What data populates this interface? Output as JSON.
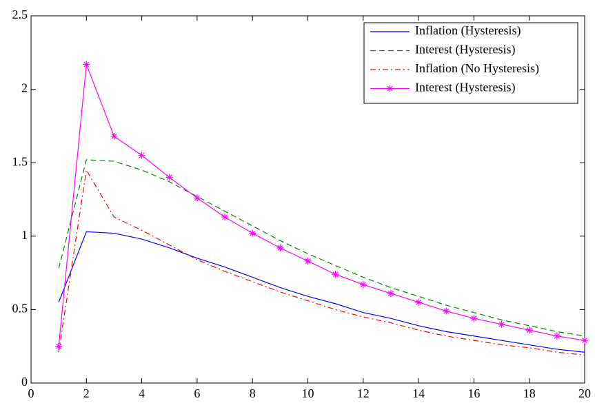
{
  "chart_data": {
    "type": "line",
    "x": [
      1,
      2,
      3,
      4,
      5,
      6,
      7,
      8,
      9,
      10,
      11,
      12,
      13,
      14,
      15,
      16,
      17,
      18,
      19,
      20
    ],
    "series": [
      {
        "name": "Inflation (Hysteresis)",
        "color": "#0000ff",
        "style": "solid",
        "values": [
          0.55,
          1.03,
          1.02,
          0.98,
          0.92,
          0.85,
          0.79,
          0.72,
          0.65,
          0.59,
          0.54,
          0.48,
          0.44,
          0.39,
          0.35,
          0.32,
          0.29,
          0.26,
          0.23,
          0.21
        ]
      },
      {
        "name": "Interest (Hysteresis)",
        "color": "#008000",
        "style": "dashed",
        "values": [
          0.78,
          1.52,
          1.51,
          1.45,
          1.37,
          1.27,
          1.17,
          1.07,
          0.97,
          0.88,
          0.8,
          0.72,
          0.65,
          0.59,
          0.53,
          0.48,
          0.43,
          0.39,
          0.35,
          0.32
        ]
      },
      {
        "name": "Inflation (No Hysteresis)",
        "color": "#ff0000",
        "style": "dashdot",
        "values": [
          0.21,
          1.45,
          1.13,
          1.04,
          0.94,
          0.84,
          0.76,
          0.69,
          0.62,
          0.56,
          0.5,
          0.45,
          0.41,
          0.36,
          0.32,
          0.29,
          0.26,
          0.24,
          0.21,
          0.19
        ]
      },
      {
        "name": "Interest (Hysteresis)",
        "color": "#ff00ff",
        "style": "solid",
        "marker": "star",
        "values": [
          0.25,
          2.17,
          1.68,
          1.55,
          1.4,
          1.26,
          1.13,
          1.02,
          0.92,
          0.83,
          0.74,
          0.67,
          0.61,
          0.55,
          0.49,
          0.44,
          0.4,
          0.36,
          0.32,
          0.29
        ]
      }
    ],
    "xlim": [
      0,
      20
    ],
    "xticks": [
      0,
      2,
      4,
      6,
      8,
      10,
      12,
      14,
      16,
      18,
      20
    ],
    "ylim": [
      0,
      2.5
    ],
    "yticks": [
      0,
      0.5,
      1,
      1.5,
      2,
      2.5
    ],
    "grid": false,
    "legend": "upper right"
  }
}
